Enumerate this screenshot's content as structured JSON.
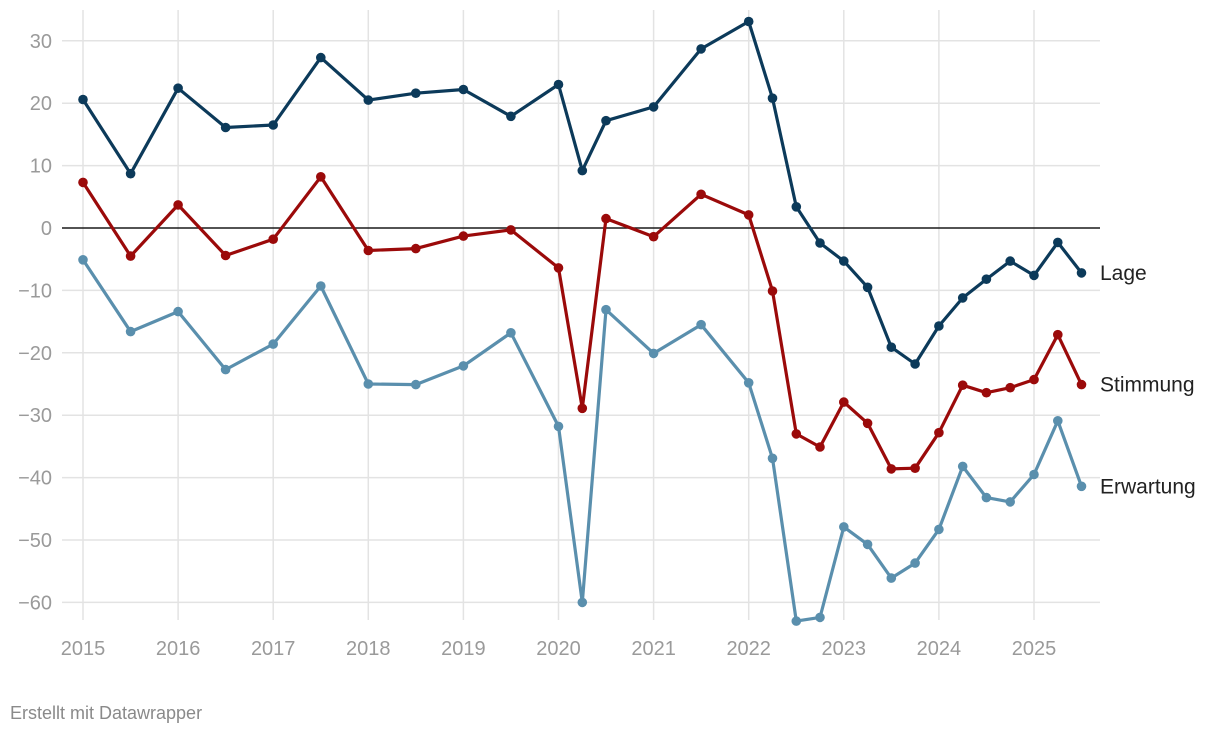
{
  "chart_data": {
    "type": "line",
    "ylim": [
      -63,
      33
    ],
    "y_ticks": [
      30,
      20,
      10,
      0,
      -10,
      -20,
      -30,
      -40,
      -50,
      -60
    ],
    "y_tick_labels": [
      "30",
      "20",
      "10",
      "0",
      "-10",
      "-20",
      "-30",
      "-40",
      "-50",
      "-60"
    ],
    "x_range": [
      2015,
      2025.5
    ],
    "x_ticks": [
      2015,
      2016,
      2017,
      2018,
      2019,
      2020,
      2021,
      2022,
      2023,
      2024,
      2025
    ],
    "x_tick_labels": [
      "2015",
      "2016",
      "2017",
      "2018",
      "2019",
      "2020",
      "2021",
      "2022",
      "2023",
      "2024",
      "2025"
    ],
    "grid": true,
    "zero_line": true,
    "legend_placement": "right, inline at line ends",
    "series": [
      {
        "name": "Lage",
        "color": "#0c3a5a",
        "points": [
          [
            2015,
            20.6
          ],
          [
            2015.5,
            8.7
          ],
          [
            2016,
            22.4
          ],
          [
            2016.5,
            16.1
          ],
          [
            2017,
            16.5
          ],
          [
            2017.5,
            27.3
          ],
          [
            2018,
            20.5
          ],
          [
            2018.5,
            21.6
          ],
          [
            2019,
            22.2
          ],
          [
            2019.5,
            17.9
          ],
          [
            2020,
            23.0
          ],
          [
            2020.25,
            9.2
          ],
          [
            2020.5,
            17.2
          ],
          [
            2021,
            19.4
          ],
          [
            2021.5,
            28.7
          ],
          [
            2022,
            33.1
          ],
          [
            2022.25,
            20.8
          ],
          [
            2022.5,
            3.4
          ],
          [
            2022.75,
            -2.4
          ],
          [
            2023,
            -5.3
          ],
          [
            2023.25,
            -9.5
          ],
          [
            2023.5,
            -19.1
          ],
          [
            2023.75,
            -21.8
          ],
          [
            2024,
            -15.7
          ],
          [
            2024.25,
            -11.2
          ],
          [
            2024.5,
            -8.2
          ],
          [
            2024.75,
            -5.3
          ],
          [
            2025,
            -7.6
          ],
          [
            2025.25,
            -2.3
          ],
          [
            2025.5,
            -7.2
          ]
        ]
      },
      {
        "name": "Stimmung",
        "color": "#9b0a0a",
        "points": [
          [
            2015,
            7.3
          ],
          [
            2015.5,
            -4.5
          ],
          [
            2016,
            3.7
          ],
          [
            2016.5,
            -4.4
          ],
          [
            2017,
            -1.8
          ],
          [
            2017.5,
            8.2
          ],
          [
            2018,
            -3.6
          ],
          [
            2018.5,
            -3.3
          ],
          [
            2019,
            -1.3
          ],
          [
            2019.5,
            -0.3
          ],
          [
            2020,
            -6.4
          ],
          [
            2020.25,
            -28.9
          ],
          [
            2020.5,
            1.5
          ],
          [
            2021,
            -1.4
          ],
          [
            2021.5,
            5.4
          ],
          [
            2022,
            2.1
          ],
          [
            2022.25,
            -10.1
          ],
          [
            2022.5,
            -33.0
          ],
          [
            2022.75,
            -35.1
          ],
          [
            2023,
            -27.9
          ],
          [
            2023.25,
            -31.3
          ],
          [
            2023.5,
            -38.6
          ],
          [
            2023.75,
            -38.5
          ],
          [
            2024,
            -32.8
          ],
          [
            2024.25,
            -25.2
          ],
          [
            2024.5,
            -26.4
          ],
          [
            2024.75,
            -25.6
          ],
          [
            2025,
            -24.3
          ],
          [
            2025.25,
            -17.1
          ],
          [
            2025.5,
            -25.1
          ]
        ]
      },
      {
        "name": "Erwartung",
        "color": "#5a8fad",
        "points": [
          [
            2015,
            -5.1
          ],
          [
            2015.5,
            -16.6
          ],
          [
            2016,
            -13.4
          ],
          [
            2016.5,
            -22.7
          ],
          [
            2017,
            -18.6
          ],
          [
            2017.5,
            -9.3
          ],
          [
            2018,
            -25.0
          ],
          [
            2018.5,
            -25.1
          ],
          [
            2019,
            -22.1
          ],
          [
            2019.5,
            -16.8
          ],
          [
            2020,
            -31.8
          ],
          [
            2020.25,
            -60.0
          ],
          [
            2020.5,
            -13.1
          ],
          [
            2021,
            -20.1
          ],
          [
            2021.5,
            -15.5
          ],
          [
            2022,
            -24.8
          ],
          [
            2022.25,
            -36.9
          ],
          [
            2022.5,
            -63.0
          ],
          [
            2022.75,
            -62.4
          ],
          [
            2023,
            -47.9
          ],
          [
            2023.25,
            -50.7
          ],
          [
            2023.5,
            -56.1
          ],
          [
            2023.75,
            -53.7
          ],
          [
            2024,
            -48.3
          ],
          [
            2024.25,
            -38.2
          ],
          [
            2024.5,
            -43.2
          ],
          [
            2024.75,
            -43.9
          ],
          [
            2025,
            -39.5
          ],
          [
            2025.25,
            -30.9
          ],
          [
            2025.5,
            -41.4
          ]
        ]
      }
    ]
  },
  "footer": {
    "credit": "Erstellt mit Datawrapper"
  }
}
